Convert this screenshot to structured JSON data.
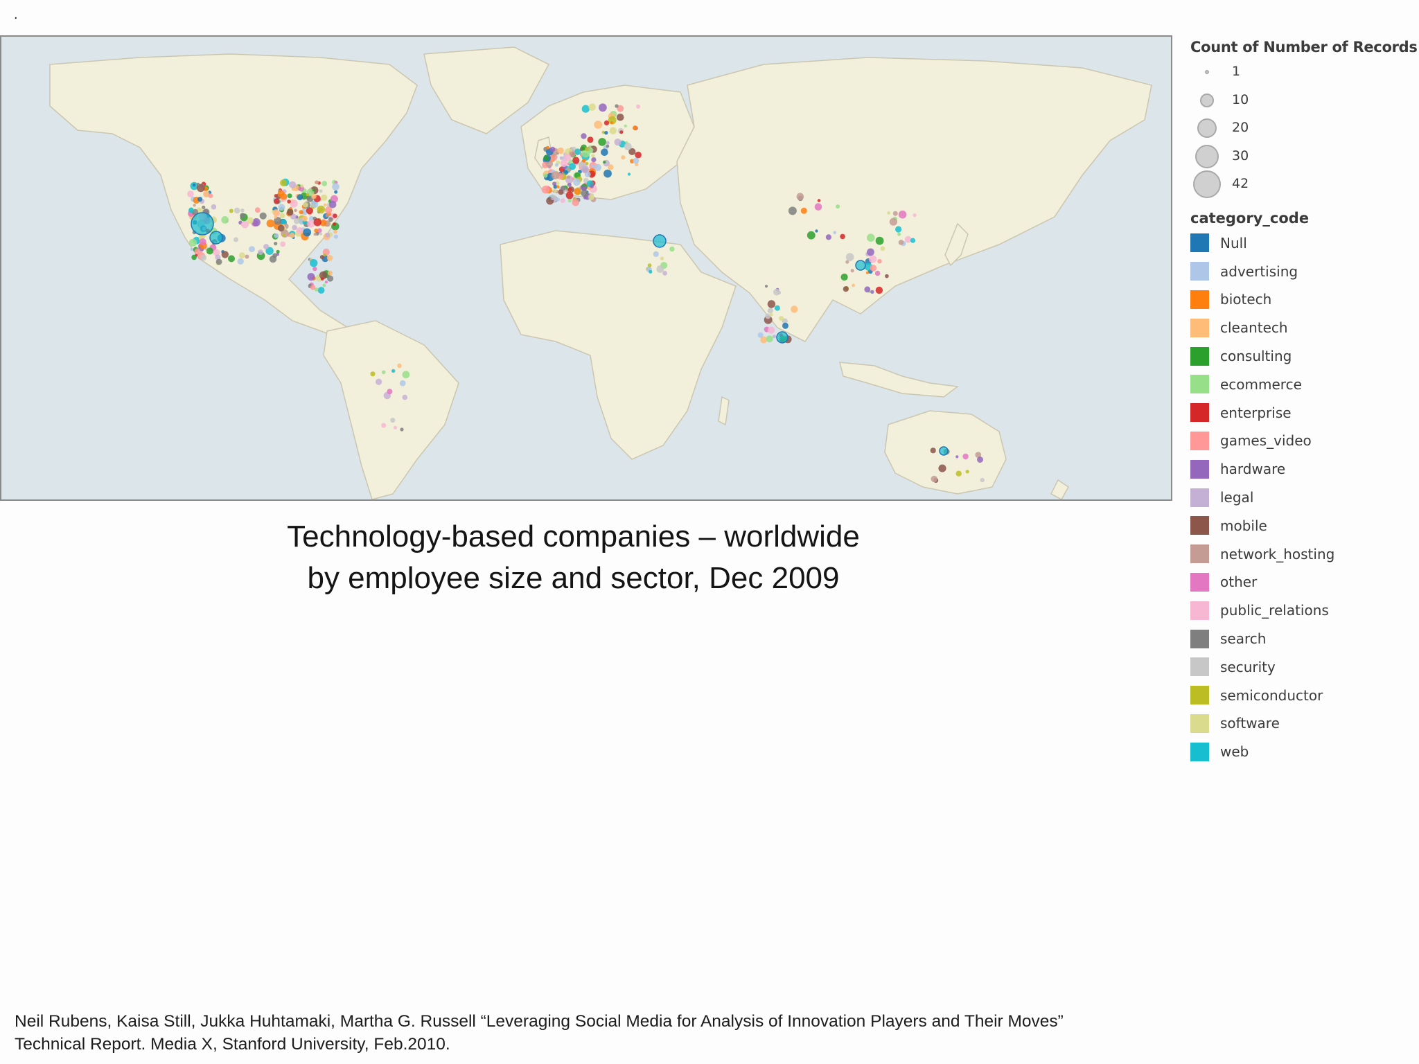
{
  "page": {
    "top_mark": ".",
    "caption_line1": "Technology-based companies – worldwide",
    "caption_line2": "by employee size and sector, Dec 2009",
    "citation_line1": "Neil Rubens, Kaisa Still, Jukka Huhtamaki, Martha G. Russell “Leveraging Social Media for Analysis of Innovation Players and Their Moves”",
    "citation_line2": "Technical Report.  Media X, Stanford University, Feb.2010."
  },
  "map": {
    "ocean_color": "#dbe5ea",
    "land_color": "#f2efda",
    "border_color": "#cbc6b0"
  },
  "size_legend": {
    "title": "Count of Number of Records",
    "items": [
      {
        "label": "1",
        "value": 1
      },
      {
        "label": "10",
        "value": 10
      },
      {
        "label": "20",
        "value": 20
      },
      {
        "label": "30",
        "value": 30
      },
      {
        "label": "42",
        "value": 42
      }
    ]
  },
  "category_legend": {
    "title": "category_code",
    "items": [
      {
        "label": "Null",
        "color": "#1f77b4"
      },
      {
        "label": "advertising",
        "color": "#aec7e8"
      },
      {
        "label": "biotech",
        "color": "#ff7f0e"
      },
      {
        "label": "cleantech",
        "color": "#ffbb78"
      },
      {
        "label": "consulting",
        "color": "#2ca02c"
      },
      {
        "label": "ecommerce",
        "color": "#98df8a"
      },
      {
        "label": "enterprise",
        "color": "#d62728"
      },
      {
        "label": "games_video",
        "color": "#ff9896"
      },
      {
        "label": "hardware",
        "color": "#9467bd"
      },
      {
        "label": "legal",
        "color": "#c5b0d5"
      },
      {
        "label": "mobile",
        "color": "#8c564b"
      },
      {
        "label": "network_hosting",
        "color": "#c49c94"
      },
      {
        "label": "other",
        "color": "#e377c2"
      },
      {
        "label": "public_relations",
        "color": "#f7b6d2"
      },
      {
        "label": "search",
        "color": "#7f7f7f"
      },
      {
        "label": "security",
        "color": "#c7c7c7"
      },
      {
        "label": "semiconductor",
        "color": "#bcbd22"
      },
      {
        "label": "software",
        "color": "#dbdb8d"
      },
      {
        "label": "web",
        "color": "#17becf"
      }
    ]
  }
}
